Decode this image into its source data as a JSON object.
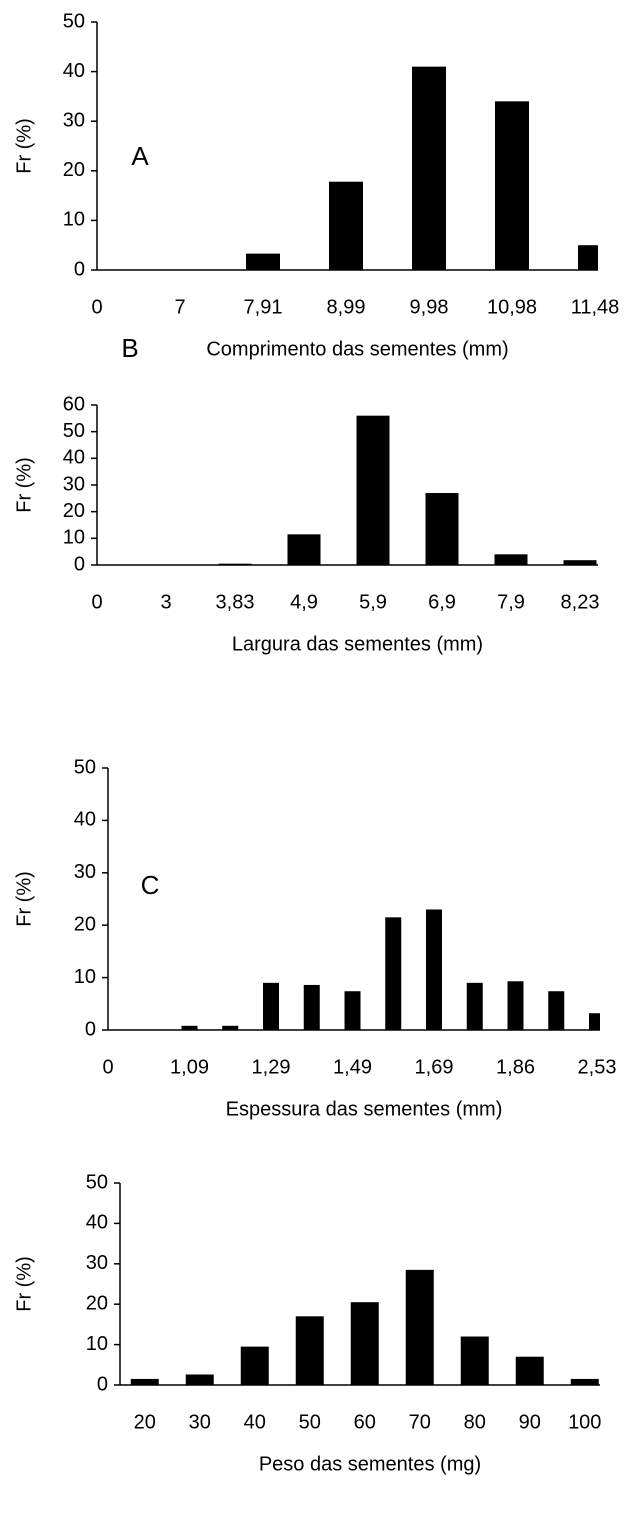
{
  "chart_data": [
    {
      "type": "bar",
      "annotation": "A",
      "ylabel": "Fr (%)",
      "xlabel": "Comprimento das sementes (mm)",
      "categories": [
        "0",
        "7",
        "7,91",
        "8,99",
        "9,98",
        "10,98",
        "11,48"
      ],
      "values": [
        0,
        0,
        3.3,
        17.8,
        41,
        34,
        5
      ],
      "color": "#000000",
      "ylim": [
        0,
        50
      ],
      "yticks": [
        0,
        10,
        20,
        30,
        40,
        50
      ]
    },
    {
      "type": "bar",
      "annotation": "B",
      "ylabel": "Fr  (%)",
      "xlabel": "Largura das sementes (mm)",
      "categories": [
        "0",
        "3",
        "3,83",
        "4,9",
        "5,9",
        "6,9",
        "7,9",
        "8,23"
      ],
      "values": [
        0,
        0,
        0.5,
        11.5,
        56,
        27,
        4,
        1.8
      ],
      "color": "#000000",
      "ylim": [
        0,
        60
      ],
      "yticks": [
        0,
        10,
        20,
        30,
        40,
        50,
        60
      ]
    },
    {
      "type": "bar",
      "annotation": "C",
      "ylabel": "Fr (%)",
      "xlabel": "Espessura das sementes  (mm)",
      "categories": [
        "0",
        null,
        "1,09",
        null,
        "1,29",
        null,
        "1,49",
        null,
        "1,69",
        null,
        "1,86",
        null,
        "2,53"
      ],
      "values": [
        0,
        0,
        0.8,
        0.8,
        9,
        8.6,
        7.4,
        21.5,
        23,
        9,
        9.3,
        7.4,
        3.2
      ],
      "color": "#000000",
      "ylim": [
        0,
        50
      ],
      "yticks": [
        0,
        10,
        20,
        30,
        40,
        50
      ]
    },
    {
      "type": "bar",
      "ylabel": "Fr (%)",
      "xlabel": "Peso das sementes (mg)",
      "categories": [
        "20",
        "30",
        "40",
        "50",
        "60",
        "70",
        "80",
        "90",
        "100"
      ],
      "values": [
        1.5,
        2.6,
        9.5,
        17,
        20.5,
        28.5,
        12,
        7,
        1.5
      ],
      "color": "#000000",
      "ylim": [
        0,
        50
      ],
      "yticks": [
        0,
        10,
        20,
        30,
        40,
        50
      ]
    }
  ]
}
